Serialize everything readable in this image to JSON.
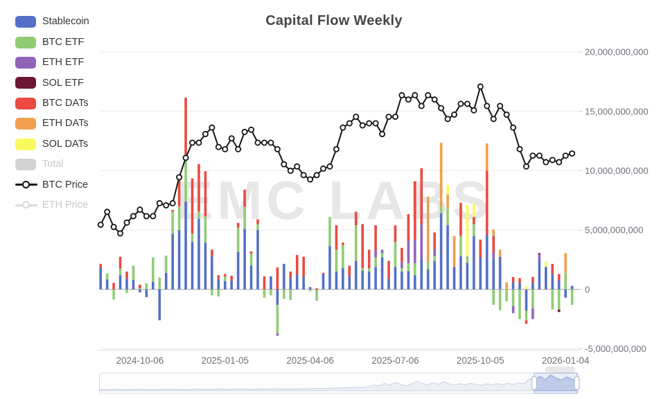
{
  "title": "Capital Flow Weekly",
  "legend": {
    "items": [
      {
        "label": "Stablecoin",
        "color": "#5470C6",
        "kind": "bar",
        "disabled": false
      },
      {
        "label": "BTC ETF",
        "color": "#91CC75",
        "kind": "bar",
        "disabled": false
      },
      {
        "label": "ETH ETF",
        "color": "#9065B8",
        "kind": "bar",
        "disabled": false
      },
      {
        "label": "SOL ETF",
        "color": "#6C1733",
        "kind": "bar",
        "disabled": false
      },
      {
        "label": "BTC DATs",
        "color": "#EA4A42",
        "kind": "bar",
        "disabled": false
      },
      {
        "label": "ETH DATs",
        "color": "#F0A04E",
        "kind": "bar",
        "disabled": false
      },
      {
        "label": "SOL DATs",
        "color": "#FAFA5F",
        "kind": "bar",
        "disabled": false
      },
      {
        "label": "Total",
        "color": "#D3D3D3",
        "kind": "bar",
        "disabled": true
      },
      {
        "label": "BTC Price",
        "color": "#141414",
        "kind": "line",
        "disabled": false
      },
      {
        "label": "ETH Price",
        "color": "#D9D9D9",
        "kind": "line",
        "disabled": true
      }
    ]
  },
  "chart_data": {
    "type": "bar",
    "subtype": "stacked-bars-with-line-overlay",
    "title": "Capital Flow Weekly",
    "watermark": "EMC LABS",
    "n_points": 73,
    "grid": true,
    "legend_position": "left",
    "y_axis": {
      "side": "right",
      "ylim": [
        -5000000000,
        20000000000
      ],
      "ticks": [
        {
          "value": 20,
          "label": "20,000,000,000"
        },
        {
          "value": 15,
          "label": "15,000,000,000"
        },
        {
          "value": 10,
          "label": "10,000,000,000"
        },
        {
          "value": 5,
          "label": "5,000,000,000"
        },
        {
          "value": 0,
          "label": "0"
        },
        {
          "value": -5,
          "label": "-5,000,000,000"
        }
      ]
    },
    "x_axis": {
      "tick_labels": [
        "2024-10-06",
        "2025-01-05",
        "2025-04-06",
        "2025-07-06",
        "2025-10-05",
        "2026-01-04"
      ],
      "tick_indices": [
        6,
        19,
        32,
        45,
        58,
        71
      ]
    },
    "unit": "USD, values stored in billions",
    "series": [
      {
        "name": "Stablecoin",
        "color": "#5470C6",
        "values": [
          1.8,
          0.85,
          0,
          1.2,
          0.9,
          0.8,
          -0.25,
          -0.65,
          0.65,
          -2.6,
          1.4,
          4.7,
          5.0,
          7.4,
          4.0,
          5.95,
          3.95,
          2.8,
          0.85,
          0.7,
          0.75,
          3.15,
          5.1,
          2.0,
          5.0,
          0,
          1.1,
          -1.3,
          2.15,
          0.95,
          1.15,
          1.1,
          0.2,
          0,
          1.3,
          3.65,
          1.5,
          1.8,
          1.1,
          2.4,
          1.6,
          1.5,
          1.9,
          2.7,
          0.9,
          1.9,
          1.5,
          1.55,
          1.2,
          2.5,
          1.7,
          2.4,
          6.4,
          5.4,
          1.9,
          2.8,
          2.25,
          4.5,
          2.7,
          4.6,
          2.6,
          2.75,
          0,
          0.6,
          0.55,
          -1.8,
          0.55,
          2.5,
          1.9,
          1.3,
          0.75,
          -0.7,
          0.3
        ]
      },
      {
        "name": "BTC ETF",
        "color": "#91CC75",
        "values": [
          0,
          0.5,
          -0.85,
          0.55,
          -0.3,
          1.2,
          0.1,
          0.5,
          2.05,
          1.0,
          1.45,
          1.85,
          2.0,
          3.6,
          0.7,
          0.6,
          2.2,
          -0.5,
          -0.6,
          0.4,
          0,
          2.05,
          1.85,
          1.0,
          0.5,
          -0.7,
          -0.5,
          -2.4,
          -0.8,
          -0.9,
          0,
          0,
          -0.15,
          -0.95,
          0,
          2.45,
          1.85,
          1.95,
          0,
          3.0,
          0.2,
          0.3,
          0.8,
          0.35,
          0,
          2.1,
          0.3,
          0.65,
          1.0,
          0,
          0.6,
          0.4,
          0.6,
          1.4,
          0,
          1.7,
          0.55,
          1.0,
          0,
          0,
          -1.3,
          -1.75,
          -1.0,
          -1.4,
          -2.5,
          -0.8,
          -1.6,
          0,
          0,
          -1.7,
          -1.7,
          1.4,
          -1.3
        ]
      },
      {
        "name": "ETH ETF",
        "color": "#9065B8",
        "values": [
          0,
          0,
          0,
          0,
          0,
          0,
          0,
          0,
          0,
          0,
          0,
          0,
          0,
          0,
          0,
          0,
          0,
          0,
          0,
          0,
          0,
          0,
          0,
          0,
          0,
          0,
          0,
          -0.2,
          0,
          0,
          0.15,
          0,
          0,
          0,
          0,
          0,
          0,
          0,
          0,
          0,
          0,
          0,
          0.6,
          0.3,
          0,
          0,
          0.5,
          1.9,
          2.0,
          3.0,
          0,
          0.6,
          0,
          0,
          0,
          0,
          0,
          0,
          0,
          0,
          0.5,
          0,
          0,
          -0.6,
          0,
          0,
          -0.9,
          0.45,
          0,
          0,
          0,
          0,
          0
        ]
      },
      {
        "name": "SOL ETF",
        "color": "#6C1733",
        "values": [
          0,
          0,
          0,
          0,
          0,
          0,
          0,
          0,
          0,
          0,
          0,
          0,
          0,
          0,
          0,
          0,
          0,
          0,
          0,
          0,
          0,
          0,
          0,
          0,
          0,
          0,
          0,
          0,
          0,
          0,
          0,
          0,
          0,
          0,
          0,
          0,
          0,
          0,
          0,
          0,
          0,
          0,
          0,
          0,
          0,
          0,
          0,
          0,
          0,
          0,
          0,
          0,
          0,
          0,
          0,
          0,
          0,
          0,
          0,
          0,
          0,
          0,
          0,
          0,
          0,
          0,
          0,
          0.1,
          0,
          0,
          -0.2,
          0,
          0
        ]
      },
      {
        "name": "BTC DATs",
        "color": "#EA4A42",
        "values": [
          0.35,
          0,
          0.55,
          1.0,
          0.6,
          0,
          0.3,
          0,
          0,
          0,
          0,
          0.15,
          2.6,
          5.15,
          4.65,
          4.0,
          3.8,
          0.55,
          0.35,
          0.2,
          0.4,
          0.4,
          1.45,
          0.2,
          0.4,
          1.1,
          0,
          1.85,
          0,
          0.55,
          1.6,
          1.65,
          0,
          0.1,
          0.1,
          0,
          2.05,
          0.2,
          0.9,
          1.15,
          3.7,
          1.55,
          2.1,
          0,
          1.5,
          1.4,
          1.2,
          2.25,
          4.9,
          4.7,
          0,
          1.4,
          0,
          0,
          0,
          2.8,
          0,
          0.6,
          1.5,
          5.4,
          1.4,
          0,
          0,
          0.45,
          0.4,
          -0.3,
          0.5,
          0,
          0,
          0.85,
          0.55,
          0,
          0
        ]
      },
      {
        "name": "ETH DATs",
        "color": "#F0A04E",
        "values": [
          0,
          0,
          0,
          0,
          0,
          0,
          0,
          0,
          0,
          0,
          0,
          0,
          0,
          0,
          0,
          0,
          0,
          0,
          0,
          0,
          0,
          0,
          0,
          0,
          0,
          0,
          0,
          0,
          0,
          0,
          0,
          0,
          0,
          0,
          0,
          0,
          0,
          0,
          0,
          0,
          0,
          0,
          0,
          0,
          0,
          0,
          0,
          0,
          0,
          0,
          5.5,
          0,
          5.35,
          1.2,
          2.6,
          0,
          0,
          0,
          0,
          2.3,
          0.55,
          0.6,
          0.6,
          0,
          0,
          0,
          0,
          0,
          0,
          0,
          0,
          1.65,
          0
        ]
      },
      {
        "name": "SOL DATs",
        "color": "#FAFA5F",
        "values": [
          0,
          0,
          0,
          0,
          0,
          0,
          0,
          0,
          0,
          0,
          0,
          0,
          0,
          0,
          0,
          0,
          0,
          0,
          0,
          0,
          0,
          0,
          0,
          0,
          0,
          0,
          0,
          0,
          0,
          0,
          0,
          0,
          0,
          0,
          0,
          0,
          0,
          0,
          0,
          0,
          0,
          0,
          0,
          0,
          0,
          0,
          0,
          0,
          0,
          0,
          0,
          0,
          0,
          0.8,
          0,
          0,
          4.3,
          1.1,
          0,
          0,
          0,
          0,
          0,
          0,
          0,
          0.25,
          0,
          0,
          0.45,
          0,
          0,
          0,
          0
        ]
      }
    ],
    "hidden_series": [
      "Total",
      "ETH Price"
    ],
    "line_series": {
      "name": "BTC Price",
      "color": "#141414",
      "unit": "USD thousands (price axis not shown)",
      "values": [
        62,
        68,
        61,
        58,
        63,
        66,
        69,
        66,
        66,
        72,
        71,
        72,
        84,
        93,
        100,
        100,
        104,
        107,
        98,
        97,
        102,
        97,
        105,
        106,
        100,
        100,
        100,
        97,
        90,
        87,
        89,
        85,
        83,
        85,
        88,
        89,
        97,
        107,
        109,
        112,
        108,
        109,
        109,
        104,
        112,
        112,
        122,
        120,
        122,
        117,
        122,
        120,
        116,
        111,
        113,
        118,
        118,
        115,
        126,
        117,
        111,
        117,
        113,
        107,
        97,
        89,
        94,
        94,
        91,
        92,
        91,
        94,
        95
      ]
    },
    "datazoom": {
      "window_start": 0.908,
      "window_end": 0.997,
      "shadow": [
        0.04,
        0.05,
        0.04,
        0.06,
        0.05,
        0.04,
        0.05,
        0.06,
        0.05,
        0.04,
        0.05,
        0.04,
        0.06,
        0.05,
        0.06,
        0.05,
        0.04,
        0.05,
        0.06,
        0.05,
        0.06,
        0.05,
        0.07,
        0.06,
        0.05,
        0.06,
        0.07,
        0.06,
        0.05,
        0.06,
        0.07,
        0.06,
        0.07,
        0.08,
        0.07,
        0.06,
        0.07,
        0.08,
        0.07,
        0.08,
        0.09,
        0.08,
        0.1,
        0.09,
        0.11,
        0.1,
        0.12,
        0.11,
        0.13,
        0.12,
        0.15,
        0.22,
        0.18,
        0.28,
        0.2,
        0.32,
        0.24,
        0.18,
        0.25,
        0.35,
        0.28,
        0.22,
        0.3,
        0.24,
        0.34,
        0.26,
        0.21,
        0.27,
        0.22,
        0.28,
        0.24,
        0.2,
        0.26,
        0.22,
        0.27,
        0.23,
        0.28,
        0.24,
        0.3,
        0.26,
        0.45,
        0.38,
        0.55,
        0.42,
        0.6,
        0.48,
        0.4,
        0.52,
        0.44,
        0.36
      ]
    }
  }
}
